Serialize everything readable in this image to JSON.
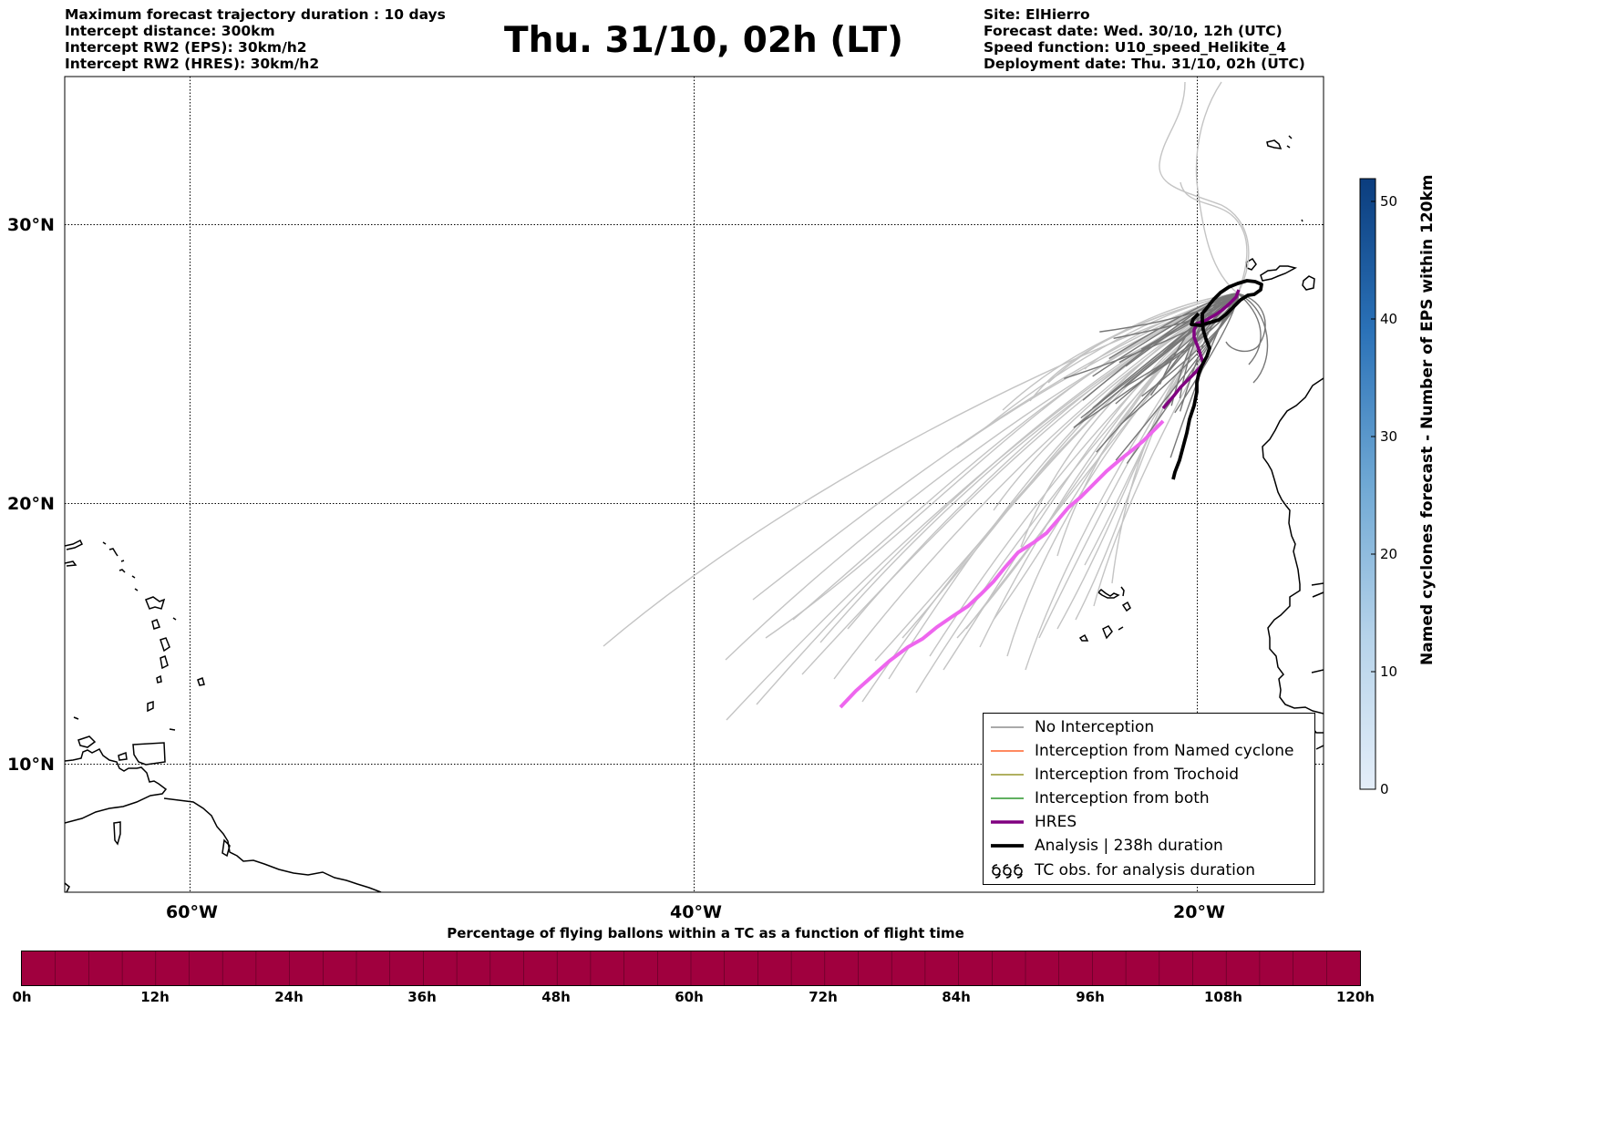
{
  "header": {
    "left_lines": [
      "Maximum forecast trajectory duration : 10 days",
      "Intercept distance: 300km",
      "Intercept RW2 (EPS):  30km/h2",
      "Intercept RW2 (HRES): 30km/h2"
    ],
    "title": "Thu. 31/10, 02h (LT)",
    "right_lines": [
      "Site: ElHierro",
      "Forecast date: Wed. 30/10, 12h (UTC)",
      "Speed function: U10_speed_Helikite_4",
      "Deployment date: Thu. 31/10, 02h (UTC)"
    ]
  },
  "map": {
    "lat_labels": [
      "30°N",
      "20°N",
      "10°N"
    ],
    "lon_labels": [
      "60°W",
      "40°W",
      "20°W"
    ],
    "colors": {
      "hres": "#800080",
      "hres_late": "#ee66ee",
      "analysis": "#000000",
      "trajectory_near": "#777777",
      "trajectory_far": "#c4c4c4"
    }
  },
  "legend": {
    "items": [
      {
        "label": "No Interception",
        "color": "#777777"
      },
      {
        "label": "Interception from Named cyclone",
        "color": "#ff4500"
      },
      {
        "label": "Interception from Trochoid",
        "color": "#808000"
      },
      {
        "label": "Interception from both",
        "color": "#008000"
      },
      {
        "label": "HRES",
        "color": "#800080"
      },
      {
        "label": "Analysis | 238h duration",
        "color": "#000000"
      },
      {
        "label": "TC obs. for analysis duration",
        "icon": "cyclone-symbols-icon"
      }
    ]
  },
  "colorbar": {
    "label": "Named cyclones forecast - Number of EPS within 120km",
    "ticks": [
      "0",
      "10",
      "20",
      "30",
      "40",
      "50"
    ],
    "color_low": "#e4eef9",
    "color_high": "#0b3d7e"
  },
  "time_bar": {
    "label": "Percentage of flying ballons within a TC as a function of flight time",
    "ticks": [
      "0h",
      "12h",
      "24h",
      "36h",
      "48h",
      "60h",
      "72h",
      "84h",
      "96h",
      "108h",
      "120h"
    ],
    "fill_color": "#a0003e"
  }
}
